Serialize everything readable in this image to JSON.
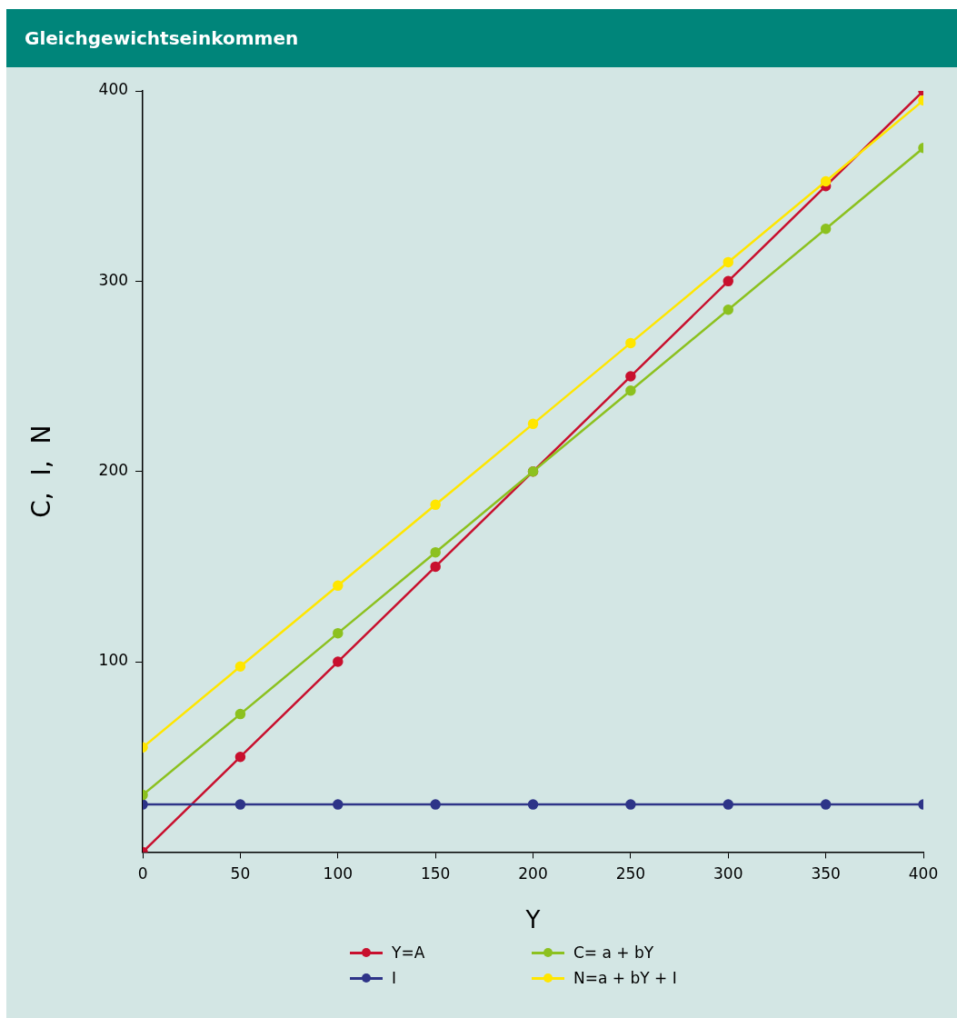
{
  "chart_data": {
    "type": "line",
    "title": "Gleichgewichtseinkommen",
    "xlabel": "Y",
    "ylabel": "C,  I,  N",
    "x": [
      0,
      50,
      100,
      150,
      200,
      250,
      300,
      350,
      400
    ],
    "xlim": [
      0,
      400
    ],
    "xticks": [
      0,
      50,
      100,
      150,
      200,
      250,
      300,
      350,
      400
    ],
    "ylim": [
      0,
      400
    ],
    "yticks": [
      100,
      200,
      300,
      400
    ],
    "grid": false,
    "legend": "bottom",
    "marker": "circle",
    "line_style": "solid",
    "series": [
      {
        "name": "Y=A",
        "color": "#c8102e",
        "values": [
          0,
          50,
          100,
          150,
          200,
          250,
          300,
          350,
          400
        ]
      },
      {
        "name": "I",
        "color": "#2e3488",
        "values": [
          25,
          25,
          25,
          25,
          25,
          25,
          25,
          25,
          25
        ]
      },
      {
        "name": "C= a + bY",
        "color": "#8cc11f",
        "values": [
          30,
          72.5,
          115,
          157.5,
          200,
          242.5,
          285,
          327.5,
          370
        ]
      },
      {
        "name": "N=a + bY + I",
        "color": "#ffe600",
        "values": [
          55,
          97.5,
          140,
          182.5,
          225,
          267.5,
          310,
          352.5,
          395
        ]
      }
    ]
  }
}
